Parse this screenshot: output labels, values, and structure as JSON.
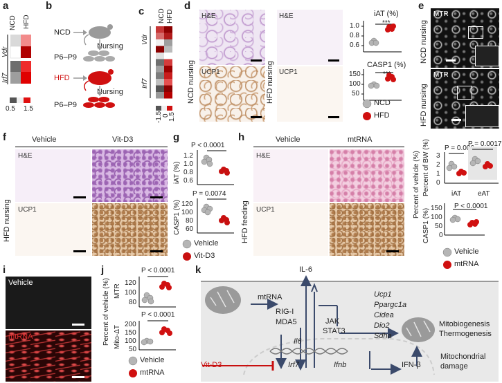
{
  "panels": {
    "a": {
      "letter": "a",
      "col_ncd": "NCD",
      "col_hfd": "HFD",
      "gene_vdr": "Vdr",
      "gene_irf7": "Irf7",
      "scale_min": "0.5",
      "scale_max": "1.5"
    },
    "b": {
      "letter": "b",
      "ncd": "NCD",
      "nursing1": "Nursing",
      "age1": "P6–P9",
      "hfd": "HFD",
      "nursing2": "Nursing",
      "age2": "P6–P9"
    },
    "c": {
      "letter": "c",
      "col_ncd": "NCD",
      "col_hfd": "HFD",
      "gene_vdr": "Vdr",
      "gene_irf7": "Irf7",
      "scale_a": "-1.5",
      "scale_b": "0",
      "scale_c": "1.5"
    },
    "d": {
      "letter": "d",
      "he1": "H&E",
      "ucp1_1": "UCP1",
      "row1": "NCD nursing",
      "he2": "H&E",
      "ucp1_2": "UCP1",
      "row2": "HFD nursing",
      "iat_title": "iAT (%)",
      "iat_ticks": [
        "1.0",
        "0.8",
        "0.6"
      ],
      "iat_sig": "***",
      "casp_title": "CASP1 (%)",
      "casp_ticks": [
        "150",
        "100",
        "50"
      ],
      "casp_sig": "***",
      "legend_ncd": "NCD",
      "legend_hfd": "HFD"
    },
    "e": {
      "letter": "e",
      "mtr1": "MTR",
      "row1": "NCD nursing",
      "mtr2": "MTR",
      "row2": "HFD nursing"
    },
    "f": {
      "letter": "f",
      "vehicle": "Vehicle",
      "vitd3": "Vit-D3",
      "he": "H&E",
      "ucp1": "UCP1",
      "row": "HFD nursing"
    },
    "g": {
      "letter": "g",
      "p1": "P < 0.0001",
      "ylab1": "iAT (%)",
      "ticks1": [
        "1.2",
        "1.0",
        "0.8",
        "0.6"
      ],
      "p2": "P = 0.0074",
      "ylab2": "CASP1 (%)",
      "ticks2": [
        "120",
        "100",
        "80",
        "60"
      ],
      "legend_vehicle": "Vehicle",
      "legend_vitd3": "Vit-D3"
    },
    "h": {
      "letter": "h",
      "vehicle": "Vehicle",
      "mtrna": "mtRNA",
      "he": "H&E",
      "ucp1": "UCP1",
      "row": "HFD feeding",
      "ylab1": "Percent of BW (%)",
      "ticks1": [
        "3",
        "2",
        "1",
        "0"
      ],
      "p1": "P = 0.006",
      "p2": "P = 0.0017",
      "xcat1": "iAT",
      "xcat2": "eAT",
      "side": "Percent of vehicle (%)",
      "ylab2": "CASP1 (%)",
      "ticks2": [
        "150",
        "100",
        "50",
        "0"
      ],
      "p3": "P < 0.0001",
      "legend_vehicle": "Vehicle",
      "legend_mtrna": "mtRNA"
    },
    "i": {
      "letter": "i",
      "vehicle": "Vehicle",
      "mtrna": "mtRNA"
    },
    "j": {
      "letter": "j",
      "side": "Percent of vehicle (%)",
      "p1": "P < 0.0001",
      "ylab1": "MTR",
      "ticks1": [
        "120",
        "100",
        "80"
      ],
      "p2": "P < 0.0001",
      "ylab2": "Mito-ΔT",
      "ticks2": [
        "200",
        "150",
        "100",
        "50"
      ],
      "legend_vehicle": "Vehicle",
      "legend_mtrna": "mtRNA"
    },
    "k": {
      "letter": "k",
      "il6_top": "IL-6",
      "mtrna": "mtRNA",
      "rigi": "RIG-I",
      "mda5": "MDA5",
      "jak": "JAK",
      "stat3": "STAT3",
      "il6": "Il6",
      "irf7": "Irf7",
      "ifnb": "Ifnb",
      "ifnbeta": "IFN-β",
      "vitd3": "Vit-D3",
      "genes": [
        "Ucp1",
        "Ppargc1a",
        "Cidea",
        "Dio2",
        "Sdha"
      ],
      "mito1": "Mitobiogenesis",
      "mito2": "Thermogenesis",
      "damage1": "Mitochondrial",
      "damage2": "damage"
    }
  },
  "colors": {
    "ncd_gray": "#b5b5b5",
    "hfd_red": "#d01010",
    "vitd3_red": "#c81010"
  }
}
